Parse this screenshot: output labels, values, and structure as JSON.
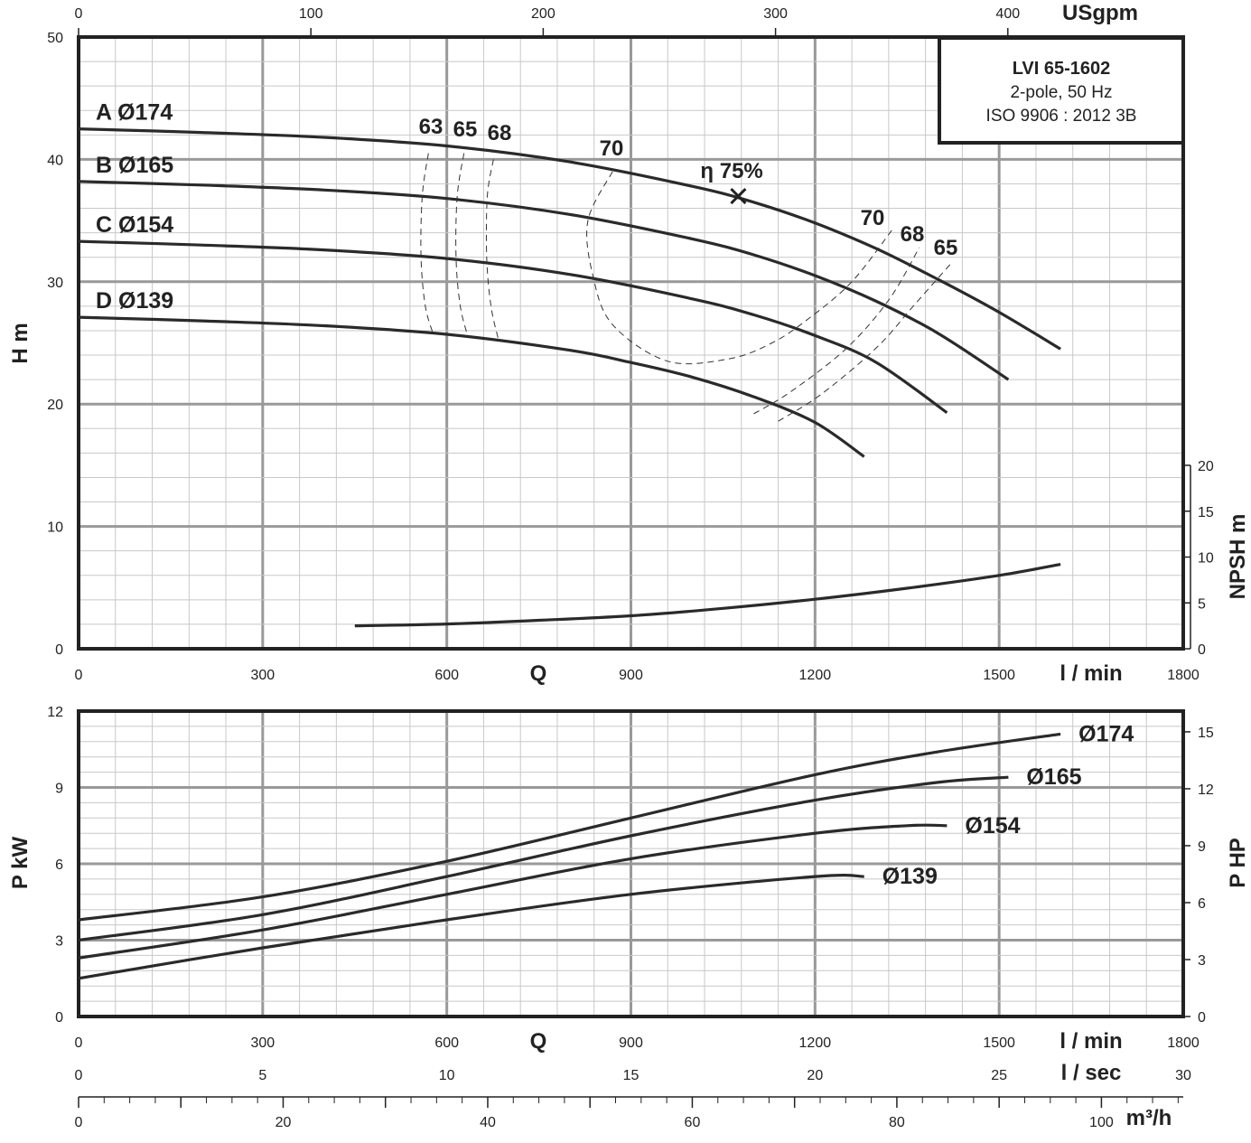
{
  "chart_data": [
    {
      "type": "line",
      "title": "LVI 65-1602",
      "subtitle_lines": [
        "2-pole, 50 Hz",
        "ISO 9906 : 2012 3B"
      ],
      "xlabel": "Q",
      "x_unit": "l / min",
      "x_top_unit": "USgpm",
      "ylabel": "H m",
      "y2label": "NPSH m",
      "xlim": [
        0,
        1800
      ],
      "ylim": [
        0,
        50
      ],
      "y2lim": [
        0,
        20
      ],
      "grid": true,
      "x_ticks": [
        "0",
        "300",
        "600",
        "900",
        "1200",
        "1500",
        "1800"
      ],
      "x_top_ticks": [
        "0",
        "100",
        "200",
        "300",
        "400"
      ],
      "y_ticks": [
        "0",
        "10",
        "20",
        "30",
        "40",
        "50"
      ],
      "y2_ticks": [
        "0",
        "5",
        "10",
        "15",
        "20"
      ],
      "series": [
        {
          "name": "A Ø174",
          "x": [
            0,
            200,
            400,
            600,
            800,
            1000,
            1100,
            1200,
            1300,
            1400,
            1500,
            1600
          ],
          "y": [
            42.5,
            42.2,
            41.8,
            41.1,
            39.8,
            37.8,
            36.5,
            34.8,
            32.7,
            30.2,
            27.5,
            24.5
          ]
        },
        {
          "name": "B Ø165",
          "x": [
            0,
            200,
            400,
            600,
            800,
            1000,
            1100,
            1200,
            1300,
            1400,
            1515
          ],
          "y": [
            38.2,
            37.9,
            37.5,
            36.8,
            35.5,
            33.5,
            32.2,
            30.5,
            28.4,
            25.8,
            22.0
          ]
        },
        {
          "name": "C Ø154",
          "x": [
            0,
            200,
            400,
            600,
            800,
            1000,
            1100,
            1200,
            1300,
            1415
          ],
          "y": [
            33.3,
            33.0,
            32.6,
            31.9,
            30.6,
            28.6,
            27.3,
            25.6,
            23.4,
            19.3
          ]
        },
        {
          "name": "D Ø139",
          "x": [
            0,
            200,
            400,
            600,
            800,
            900,
            1000,
            1100,
            1200,
            1280
          ],
          "y": [
            27.1,
            26.8,
            26.4,
            25.7,
            24.4,
            23.4,
            22.2,
            20.6,
            18.5,
            15.7
          ]
        },
        {
          "name": "NPSH",
          "axis": "y2",
          "x": [
            450,
            600,
            750,
            900,
            1050,
            1200,
            1350,
            1500,
            1600
          ],
          "y": [
            2.5,
            2.7,
            3.1,
            3.6,
            4.4,
            5.4,
            6.6,
            8.0,
            9.2
          ]
        }
      ],
      "efficiency_curves": [
        {
          "label": "63",
          "x": [
            570,
            560,
            558,
            565,
            578
          ],
          "y": [
            40.5,
            37,
            32,
            28,
            25.7
          ]
        },
        {
          "label": "65",
          "x": [
            628,
            617,
            615,
            622,
            635
          ],
          "y": [
            40.5,
            37,
            32,
            28,
            25.4
          ]
        },
        {
          "label": "68",
          "x": [
            676,
            666,
            665,
            672,
            684
          ],
          "y": [
            40.0,
            37,
            32,
            28,
            25.3
          ]
        },
        {
          "label": "70",
          "x": [
            870,
            830,
            838,
            870,
            960,
            1060,
            1130,
            1190,
            1260,
            1325
          ],
          "y": [
            39.0,
            35,
            30.5,
            26.5,
            23.5,
            23.7,
            25.0,
            27,
            30,
            34.2
          ]
        },
        {
          "label": "68",
          "x": [
            1100,
            1160,
            1250,
            1320,
            1370
          ],
          "y": [
            19.2,
            21.0,
            24.5,
            28.5,
            32.8
          ]
        },
        {
          "label": "65",
          "x": [
            1140,
            1210,
            1300,
            1360,
            1420
          ],
          "y": [
            18.6,
            20.8,
            24.6,
            28.0,
            31.4
          ]
        }
      ],
      "efficiency_label_positions": [
        {
          "label": "63"
        },
        {
          "label": "65"
        },
        {
          "label": "68"
        },
        {
          "label": "70"
        },
        {
          "label": "70"
        },
        {
          "label": "68"
        },
        {
          "label": "65"
        }
      ],
      "bep": {
        "label": "η 75%",
        "x": 1075,
        "y": 37.0
      }
    },
    {
      "type": "line",
      "xlabel": "Q",
      "x_unit": "l / min",
      "x2_unit": "l / sec",
      "x3_unit": "m³/h",
      "ylabel": "P kW",
      "y2label": "P HP",
      "xlim": [
        0,
        1800
      ],
      "ylim": [
        0,
        12
      ],
      "y2lim": [
        0,
        16
      ],
      "grid": true,
      "x_ticks": [
        "0",
        "300",
        "600",
        "900",
        "1200",
        "1500",
        "1800"
      ],
      "x2_ticks": [
        "0",
        "5",
        "10",
        "15",
        "20",
        "25",
        "30"
      ],
      "x3_ticks": [
        "0",
        "20",
        "40",
        "60",
        "80",
        "100"
      ],
      "y_ticks": [
        "0",
        "3",
        "6",
        "9",
        "12"
      ],
      "y2_ticks": [
        "0",
        "3",
        "6",
        "9",
        "12",
        "15"
      ],
      "series": [
        {
          "name": "Ø174",
          "x": [
            0,
            300,
            600,
            900,
            1200,
            1400,
            1600
          ],
          "y": [
            3.8,
            4.7,
            6.1,
            7.8,
            9.5,
            10.4,
            11.1
          ]
        },
        {
          "name": "Ø165",
          "x": [
            0,
            300,
            600,
            900,
            1200,
            1400,
            1515
          ],
          "y": [
            3.0,
            4.0,
            5.5,
            7.1,
            8.5,
            9.2,
            9.4
          ]
        },
        {
          "name": "Ø154",
          "x": [
            0,
            300,
            600,
            900,
            1200,
            1350,
            1415
          ],
          "y": [
            2.3,
            3.4,
            4.8,
            6.2,
            7.2,
            7.5,
            7.5
          ]
        },
        {
          "name": "Ø139",
          "x": [
            0,
            300,
            600,
            900,
            1200,
            1280
          ],
          "y": [
            1.5,
            2.7,
            3.8,
            4.8,
            5.5,
            5.5
          ]
        }
      ]
    }
  ],
  "colors": {
    "curve": "#2a2a2a",
    "grid_major": "#999999",
    "grid_minor": "#c8c8c8",
    "frame": "#222222"
  }
}
